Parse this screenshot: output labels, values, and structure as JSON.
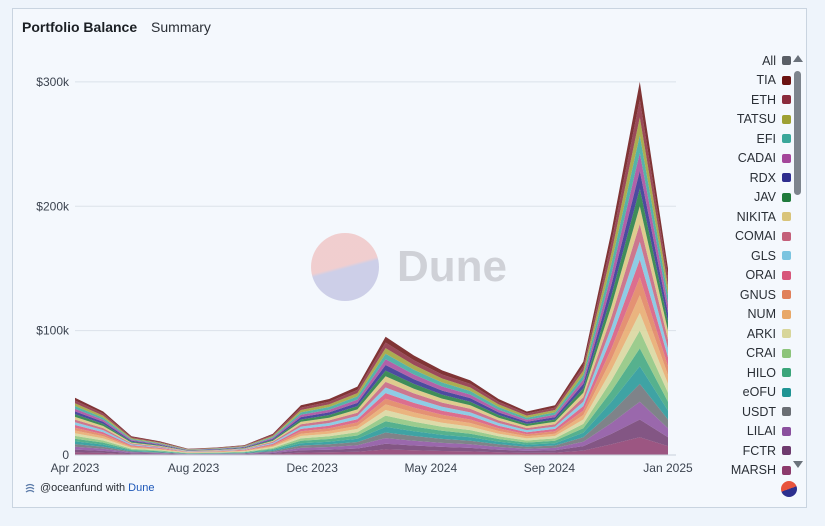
{
  "header": {
    "title": "Portfolio Balance",
    "tab": "Summary"
  },
  "watermark": "Dune",
  "footer": {
    "handle": "@oceanfund with",
    "brand": "Dune"
  },
  "chart_data": {
    "type": "area",
    "stacked": true,
    "title": "Portfolio Balance",
    "y_ticks": [
      "$300k",
      "$200k",
      "$100k",
      "0"
    ],
    "y_tick_values": [
      300000,
      200000,
      100000,
      0
    ],
    "x_ticks": [
      "Apr 2023",
      "Aug 2023",
      "Dec 2023",
      "May 2024",
      "Sep 2024",
      "Jan 2025"
    ],
    "ylim": [
      0,
      320000
    ],
    "grid": true,
    "legend_position": "right",
    "x": [
      "2023-04",
      "2023-05",
      "2023-06",
      "2023-07",
      "2023-08",
      "2023-09",
      "2023-10",
      "2023-11",
      "2023-12",
      "2024-01",
      "2024-02",
      "2024-03",
      "2024-04",
      "2024-05",
      "2024-06",
      "2024-07",
      "2024-08",
      "2024-09",
      "2024-10",
      "2024-11",
      "2024-12",
      "2025-01"
    ],
    "total": [
      46000,
      35000,
      15000,
      11000,
      5000,
      6000,
      8000,
      17000,
      40000,
      45000,
      55000,
      95000,
      80000,
      68000,
      60000,
      45000,
      35000,
      40000,
      75000,
      180000,
      300000,
      150000
    ],
    "series": [
      {
        "name": "All",
        "color": "#5a5f66"
      },
      {
        "name": "TIA",
        "color": "#6b1212"
      },
      {
        "name": "ETH",
        "color": "#8a2b3c"
      },
      {
        "name": "TATSU",
        "color": "#9ea033"
      },
      {
        "name": "EFI",
        "color": "#3aa79a"
      },
      {
        "name": "CADAI",
        "color": "#a4469a"
      },
      {
        "name": "RDX",
        "color": "#2e2d8e"
      },
      {
        "name": "JAV",
        "color": "#1f7a3c"
      },
      {
        "name": "NIKITA",
        "color": "#d9c47a"
      },
      {
        "name": "COMAI",
        "color": "#c4607a"
      },
      {
        "name": "GLS",
        "color": "#7bc4e0"
      },
      {
        "name": "ORAI",
        "color": "#d7567a"
      },
      {
        "name": "GNUS",
        "color": "#e0805a"
      },
      {
        "name": "NUM",
        "color": "#e8a868"
      },
      {
        "name": "ARKI",
        "color": "#d8d69a"
      },
      {
        "name": "CRAI",
        "color": "#8cc47a"
      },
      {
        "name": "HILO",
        "color": "#3aa57a"
      },
      {
        "name": "eOFU",
        "color": "#1f9494"
      },
      {
        "name": "USDT",
        "color": "#6a6e74"
      },
      {
        "name": "LILAI",
        "color": "#8a4f9e"
      },
      {
        "name": "FCTR",
        "color": "#6e3a6e"
      },
      {
        "name": "MARSH",
        "color": "#8c3a6c"
      }
    ]
  }
}
